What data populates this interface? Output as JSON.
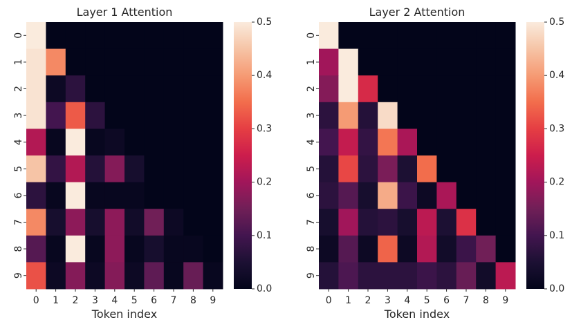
{
  "chart_data": [
    {
      "type": "heatmap",
      "title": "Layer 1 Attention",
      "xlabel": "Token index",
      "ylabel": "",
      "x_ticks": [
        "0",
        "1",
        "2",
        "3",
        "4",
        "5",
        "6",
        "7",
        "8",
        "9"
      ],
      "y_ticks": [
        "0",
        "1",
        "2",
        "3",
        "4",
        "5",
        "6",
        "7",
        "8",
        "9"
      ],
      "values": [
        [
          0.5,
          0.0,
          0.0,
          0.0,
          0.0,
          0.0,
          0.0,
          0.0,
          0.0,
          0.0
        ],
        [
          0.49,
          0.38,
          0.0,
          0.0,
          0.0,
          0.0,
          0.0,
          0.0,
          0.0,
          0.0
        ],
        [
          0.49,
          0.02,
          0.07,
          0.0,
          0.0,
          0.0,
          0.0,
          0.0,
          0.0,
          0.0
        ],
        [
          0.49,
          0.1,
          0.33,
          0.07,
          0.0,
          0.0,
          0.0,
          0.0,
          0.0,
          0.0
        ],
        [
          0.22,
          0.01,
          0.5,
          0.01,
          0.02,
          0.0,
          0.0,
          0.0,
          0.0,
          0.0
        ],
        [
          0.45,
          0.08,
          0.22,
          0.06,
          0.17,
          0.04,
          0.0,
          0.0,
          0.0,
          0.0
        ],
        [
          0.07,
          0.01,
          0.5,
          0.01,
          0.01,
          0.01,
          0.0,
          0.0,
          0.0,
          0.0
        ],
        [
          0.38,
          0.04,
          0.18,
          0.04,
          0.18,
          0.03,
          0.15,
          0.02,
          0.0,
          0.0
        ],
        [
          0.12,
          0.01,
          0.5,
          0.01,
          0.18,
          0.01,
          0.04,
          0.01,
          0.01,
          0.0
        ],
        [
          0.32,
          0.02,
          0.17,
          0.02,
          0.17,
          0.02,
          0.13,
          0.01,
          0.14,
          0.01
        ]
      ],
      "zlim": [
        0,
        0.5
      ],
      "colorbar_ticks": [
        "0.0",
        "0.1",
        "0.2",
        "0.3",
        "0.4",
        "0.5"
      ],
      "colormap": "rocket",
      "grid": false
    },
    {
      "type": "heatmap",
      "title": "Layer 2 Attention",
      "xlabel": "Token index",
      "ylabel": "",
      "x_ticks": [
        "0",
        "1",
        "2",
        "3",
        "4",
        "5",
        "6",
        "7",
        "8",
        "9"
      ],
      "y_ticks": [
        "0",
        "1",
        "2",
        "3",
        "4",
        "5",
        "6",
        "7",
        "8",
        "9"
      ],
      "values": [
        [
          0.5,
          0.0,
          0.0,
          0.0,
          0.0,
          0.0,
          0.0,
          0.0,
          0.0,
          0.0
        ],
        [
          0.2,
          0.5,
          0.0,
          0.0,
          0.0,
          0.0,
          0.0,
          0.0,
          0.0,
          0.0
        ],
        [
          0.17,
          0.5,
          0.27,
          0.0,
          0.0,
          0.0,
          0.0,
          0.0,
          0.0,
          0.0
        ],
        [
          0.07,
          0.4,
          0.06,
          0.48,
          0.0,
          0.0,
          0.0,
          0.0,
          0.0,
          0.0
        ],
        [
          0.1,
          0.24,
          0.08,
          0.36,
          0.21,
          0.0,
          0.0,
          0.0,
          0.0,
          0.0
        ],
        [
          0.06,
          0.31,
          0.07,
          0.16,
          0.05,
          0.35,
          0.0,
          0.0,
          0.0,
          0.0
        ],
        [
          0.07,
          0.12,
          0.04,
          0.42,
          0.09,
          0.02,
          0.21,
          0.0,
          0.0,
          0.0
        ],
        [
          0.04,
          0.2,
          0.06,
          0.07,
          0.04,
          0.23,
          0.05,
          0.28,
          0.0,
          0.0
        ],
        [
          0.02,
          0.12,
          0.02,
          0.34,
          0.02,
          0.22,
          0.03,
          0.09,
          0.15,
          0.0
        ],
        [
          0.06,
          0.11,
          0.07,
          0.07,
          0.07,
          0.09,
          0.07,
          0.14,
          0.03,
          0.23
        ]
      ],
      "zlim": [
        0,
        0.5
      ],
      "colorbar_ticks": [
        "0.0",
        "0.1",
        "0.2",
        "0.3",
        "0.4",
        "0.5"
      ],
      "colormap": "rocket",
      "grid": false
    }
  ]
}
